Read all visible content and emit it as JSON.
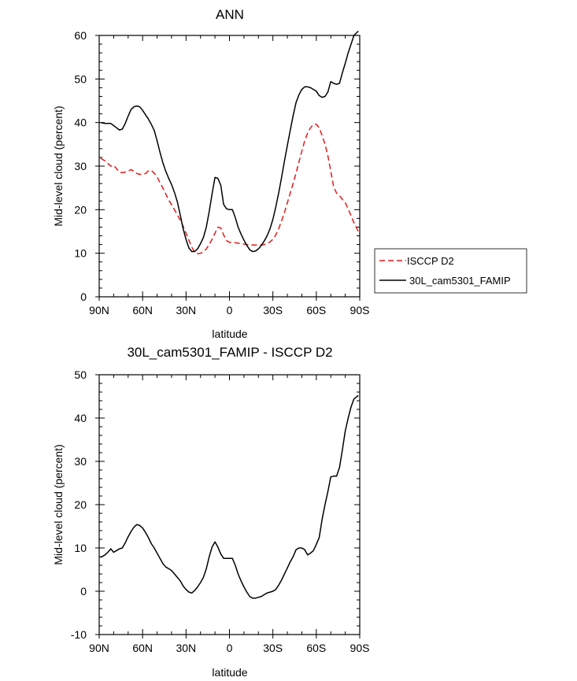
{
  "chart_data": [
    {
      "type": "line",
      "title": "ANN",
      "xlabel": "latitude",
      "ylabel": "Mid-level cloud (percent)",
      "xlim": [
        90,
        -90
      ],
      "ylim": [
        0,
        60
      ],
      "x_ticks": [
        90,
        60,
        30,
        0,
        -30,
        -60,
        -90
      ],
      "x_tick_labels": [
        "90N",
        "60N",
        "30N",
        "0",
        "30S",
        "60S",
        "90S"
      ],
      "y_ticks": [
        0,
        10,
        20,
        30,
        40,
        50,
        60
      ],
      "y_tick_labels": [
        "0",
        "10",
        "20",
        "30",
        "40",
        "50",
        "60"
      ],
      "legend_position": "right",
      "series": [
        {
          "name": "ISCCP D2",
          "color": "#e31a1c",
          "dash": "dashed",
          "x": [
            89,
            86,
            84,
            82,
            80,
            78,
            76,
            74,
            72,
            70,
            68,
            66,
            64,
            62,
            60,
            58,
            56,
            54,
            52,
            50,
            48,
            46,
            44,
            42,
            40,
            38,
            36,
            34,
            32,
            30,
            28,
            26,
            24,
            22,
            20,
            18,
            16,
            14,
            12,
            10,
            8,
            6,
            4,
            2,
            0,
            -2,
            -4,
            -6,
            -8,
            -10,
            -12,
            -14,
            -16,
            -18,
            -20,
            -22,
            -24,
            -26,
            -28,
            -30,
            -32,
            -34,
            -36,
            -38,
            -40,
            -42,
            -44,
            -46,
            -48,
            -50,
            -52,
            -54,
            -56,
            -58,
            -60,
            -62,
            -64,
            -66,
            -68,
            -70,
            -72,
            -74,
            -76,
            -78,
            -80,
            -82,
            -84,
            -86,
            -89
          ],
          "y": [
            31.8,
            31.2,
            30.6,
            30.0,
            30.2,
            29.4,
            28.6,
            28.5,
            28.6,
            28.8,
            29.2,
            28.8,
            28.3,
            28.1,
            28.1,
            28.3,
            28.9,
            29.0,
            28.4,
            27.5,
            26.2,
            25.0,
            23.6,
            22.2,
            21.2,
            20.0,
            18.8,
            17.6,
            16.2,
            14.6,
            13.0,
            11.4,
            10.2,
            9.9,
            10.0,
            10.3,
            11.0,
            12.0,
            13.2,
            14.6,
            16.0,
            15.8,
            14.2,
            12.9,
            12.5,
            12.5,
            12.4,
            12.3,
            12.2,
            12.1,
            12.0,
            12.0,
            11.9,
            11.9,
            11.9,
            11.9,
            12.0,
            12.2,
            12.6,
            13.2,
            14.2,
            15.6,
            17.4,
            19.4,
            21.6,
            23.8,
            26.0,
            28.4,
            31.0,
            33.4,
            35.8,
            37.6,
            38.8,
            39.6,
            39.6,
            38.8,
            37.0,
            35.0,
            32.4,
            28.8,
            25.2,
            23.8,
            23.2,
            22.4,
            21.6,
            20.2,
            18.6,
            17.0,
            15.0
          ]
        },
        {
          "name": "30L_cam5301_FAMIP",
          "color": "#000000",
          "dash": "solid",
          "x": [
            89,
            86,
            84,
            82,
            80,
            78,
            76,
            74,
            72,
            70,
            68,
            66,
            64,
            62,
            60,
            58,
            56,
            54,
            52,
            50,
            48,
            46,
            44,
            42,
            40,
            38,
            36,
            34,
            32,
            30,
            28,
            26,
            24,
            22,
            20,
            18,
            16,
            14,
            12,
            10,
            8,
            6,
            4,
            2,
            0,
            -2,
            -4,
            -6,
            -8,
            -10,
            -12,
            -14,
            -16,
            -18,
            -20,
            -22,
            -24,
            -26,
            -28,
            -30,
            -32,
            -34,
            -36,
            -38,
            -40,
            -42,
            -44,
            -46,
            -48,
            -50,
            -52,
            -54,
            -56,
            -58,
            -60,
            -62,
            -64,
            -66,
            -68,
            -70,
            -72,
            -74,
            -76,
            -78,
            -80,
            -82,
            -84,
            -86,
            -89
          ],
          "y": [
            40.0,
            39.8,
            39.8,
            39.8,
            39.3,
            38.8,
            38.3,
            38.5,
            39.8,
            41.5,
            43.0,
            43.6,
            43.8,
            43.6,
            42.8,
            41.8,
            40.8,
            39.6,
            38.2,
            35.8,
            33.2,
            30.8,
            28.8,
            27.2,
            25.8,
            24.0,
            21.8,
            18.8,
            15.6,
            13.2,
            11.2,
            10.4,
            10.4,
            11.0,
            12.2,
            13.6,
            16.0,
            19.6,
            23.6,
            27.4,
            27.2,
            25.6,
            21.2,
            20.2,
            20.0,
            20.0,
            18.2,
            16.0,
            14.4,
            13.0,
            11.8,
            10.8,
            10.4,
            10.5,
            11.0,
            11.8,
            12.8,
            14.0,
            15.6,
            17.8,
            20.6,
            23.8,
            27.4,
            31.2,
            34.8,
            38.2,
            41.6,
            44.6,
            46.4,
            47.6,
            48.2,
            48.2,
            48.0,
            47.6,
            47.2,
            46.2,
            45.8,
            46.0,
            47.0,
            49.4,
            49.0,
            48.8,
            49.0,
            51.4,
            53.6,
            56.0,
            58.0,
            60.0,
            61.0
          ]
        }
      ]
    },
    {
      "type": "line",
      "title": "30L_cam5301_FAMIP - ISCCP D2",
      "xlabel": "latitude",
      "ylabel": "Mid-level cloud (percent)",
      "xlim": [
        90,
        -90
      ],
      "ylim": [
        -10,
        50
      ],
      "x_ticks": [
        90,
        60,
        30,
        0,
        -30,
        -60,
        -90
      ],
      "x_tick_labels": [
        "90N",
        "60N",
        "30N",
        "0",
        "30S",
        "60S",
        "90S"
      ],
      "y_ticks": [
        -10,
        0,
        10,
        20,
        30,
        40,
        50
      ],
      "y_tick_labels": [
        "-10",
        "0",
        "10",
        "20",
        "30",
        "40",
        "50"
      ],
      "series": [
        {
          "color": "#000000",
          "dash": "solid",
          "x": [
            89,
            86,
            84,
            82,
            80,
            78,
            76,
            74,
            72,
            70,
            68,
            66,
            64,
            62,
            60,
            58,
            56,
            54,
            52,
            50,
            48,
            46,
            44,
            42,
            40,
            38,
            36,
            34,
            32,
            30,
            28,
            26,
            24,
            22,
            20,
            18,
            16,
            14,
            12,
            10,
            8,
            6,
            4,
            2,
            0,
            -2,
            -4,
            -6,
            -8,
            -10,
            -12,
            -14,
            -16,
            -18,
            -20,
            -22,
            -24,
            -26,
            -28,
            -30,
            -32,
            -34,
            -36,
            -38,
            -40,
            -42,
            -44,
            -46,
            -48,
            -50,
            -52,
            -54,
            -56,
            -58,
            -60,
            -62,
            -64,
            -66,
            -68,
            -70,
            -72,
            -74,
            -76,
            -78,
            -80,
            -82,
            -84,
            -86,
            -89
          ],
          "y": [
            7.8,
            8.4,
            9.0,
            9.8,
            9.0,
            9.4,
            9.8,
            10.0,
            11.2,
            12.6,
            13.8,
            14.8,
            15.4,
            15.2,
            14.6,
            13.6,
            12.4,
            11.0,
            10.0,
            8.8,
            7.6,
            6.4,
            5.6,
            5.2,
            4.8,
            4.0,
            3.2,
            2.4,
            1.2,
            0.4,
            -0.2,
            -0.4,
            0.2,
            1.0,
            2.0,
            3.2,
            5.2,
            8.0,
            10.2,
            11.4,
            10.2,
            8.6,
            7.6,
            7.6,
            7.6,
            7.6,
            6.0,
            4.0,
            2.4,
            1.0,
            -0.2,
            -1.2,
            -1.6,
            -1.6,
            -1.4,
            -1.2,
            -0.8,
            -0.4,
            -0.2,
            0.0,
            0.4,
            1.4,
            2.6,
            4.0,
            5.4,
            6.8,
            8.0,
            9.6,
            10.0,
            10.0,
            9.6,
            8.4,
            8.8,
            9.4,
            10.8,
            12.4,
            16.6,
            20.0,
            23.0,
            26.4,
            26.6,
            26.6,
            28.6,
            32.6,
            37.0,
            40.0,
            42.6,
            44.4,
            45.2
          ]
        }
      ]
    }
  ]
}
